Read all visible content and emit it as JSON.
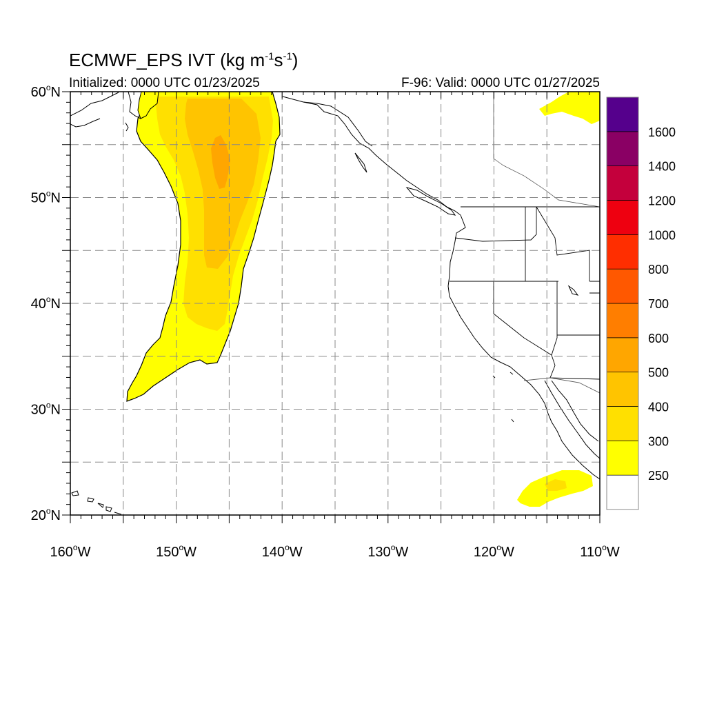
{
  "title": {
    "main": "ECMWF_EPS IVT (kg m",
    "exp1": "-1",
    "mid": "s",
    "exp2": "-1",
    "end": ")"
  },
  "initialized": "Initialized: 0000 UTC 01/23/2025",
  "valid": "F-96: Valid: 0000 UTC 01/27/2025",
  "map": {
    "lon_range": [
      -160,
      -110
    ],
    "lat_range": [
      20,
      60
    ],
    "lon_ticks": [
      {
        "value": -160,
        "num": "160",
        "hemi": "W"
      },
      {
        "value": -150,
        "num": "150",
        "hemi": "W"
      },
      {
        "value": -140,
        "num": "140",
        "hemi": "W"
      },
      {
        "value": -130,
        "num": "130",
        "hemi": "W"
      },
      {
        "value": -120,
        "num": "120",
        "hemi": "W"
      },
      {
        "value": -110,
        "num": "110",
        "hemi": "W"
      }
    ],
    "lat_ticks": [
      {
        "value": 60,
        "num": "60",
        "hemi": "N"
      },
      {
        "value": 50,
        "num": "50",
        "hemi": "N"
      },
      {
        "value": 40,
        "num": "40",
        "hemi": "N"
      },
      {
        "value": 30,
        "num": "30",
        "hemi": "N"
      },
      {
        "value": 20,
        "num": "20",
        "hemi": "N"
      }
    ],
    "grid_spacing_deg": 5,
    "grid": "dashed"
  },
  "colorbar": {
    "levels": [
      "250",
      "300",
      "400",
      "500",
      "600",
      "700",
      "800",
      "1000",
      "1200",
      "1400",
      "1600"
    ],
    "colors": [
      "#ffffff",
      "#ffff00",
      "#ffe000",
      "#ffc400",
      "#ffa600",
      "#ff7e00",
      "#ff5800",
      "#ff2e00",
      "#ee0010",
      "#c4003c",
      "#8a0064",
      "#55008c"
    ]
  }
}
